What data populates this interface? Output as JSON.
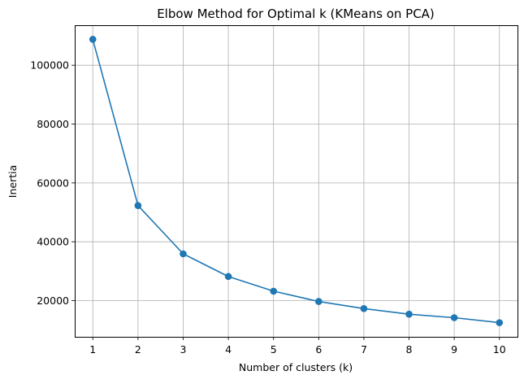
{
  "chart_data": {
    "type": "line",
    "title": "Elbow Method for Optimal k (KMeans on PCA)",
    "xlabel": "Number of clusters (k)",
    "ylabel": "Inertia",
    "x": [
      1,
      2,
      3,
      4,
      5,
      6,
      7,
      8,
      9,
      10
    ],
    "series": [
      {
        "values": [
          108800,
          52300,
          35900,
          28200,
          23200,
          19700,
          17300,
          15400,
          14200,
          12500
        ],
        "color": "#1f77b4",
        "marker": "circle"
      }
    ],
    "xlim": [
      0.6,
      10.4
    ],
    "ylim": [
      7700,
      113600
    ],
    "xticks": [
      1,
      2,
      3,
      4,
      5,
      6,
      7,
      8,
      9,
      10
    ],
    "xtick_labels": [
      "1",
      "2",
      "3",
      "4",
      "5",
      "6",
      "7",
      "8",
      "9",
      "10"
    ],
    "yticks": [
      20000,
      40000,
      60000,
      80000,
      100000
    ],
    "ytick_labels": [
      "20000",
      "40000",
      "60000",
      "80000",
      "100000"
    ],
    "grid": true,
    "legend": false
  }
}
